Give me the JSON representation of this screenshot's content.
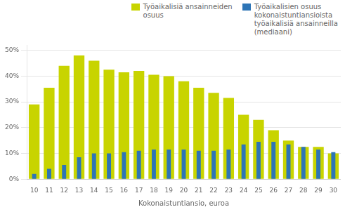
{
  "chart_data": {
    "type": "bar",
    "xlabel": "Kokonaistuntiansio, euroa",
    "categories": [
      10,
      11,
      12,
      13,
      14,
      15,
      16,
      17,
      18,
      19,
      20,
      21,
      22,
      23,
      24,
      25,
      26,
      27,
      28,
      29,
      30
    ],
    "series": [
      {
        "name": "Työaikalisiä ansainneiden\nosuus",
        "color": "#c8d400",
        "values": [
          29,
          35.5,
          44,
          48,
          46,
          42.5,
          41.5,
          42,
          40.5,
          40,
          38,
          35.5,
          33.5,
          31.5,
          25,
          23,
          19,
          15,
          12.5,
          12.5,
          10
        ]
      },
      {
        "name": "Työaikalisien osuus\nkokonaistuntiansioista\ntyöaikalisiä ansainneilla\n(mediaani)",
        "color": "#2e75b6",
        "values": [
          2,
          4,
          5.5,
          8.5,
          10,
          10,
          10.5,
          11,
          11.5,
          11.5,
          11.5,
          11,
          11,
          11.5,
          13.5,
          14.5,
          14.5,
          13.5,
          12.5,
          11.5,
          10.5
        ]
      }
    ],
    "ylim": [
      0,
      52
    ],
    "yticks": [
      {
        "value": 0,
        "label": "0%"
      },
      {
        "value": 10,
        "label": "10%"
      },
      {
        "value": 20,
        "label": "20%"
      },
      {
        "value": 30,
        "label": "30%"
      },
      {
        "value": 40,
        "label": "40%"
      },
      {
        "value": 50,
        "label": "50%"
      }
    ],
    "grid": "y",
    "legend": "upper right"
  }
}
